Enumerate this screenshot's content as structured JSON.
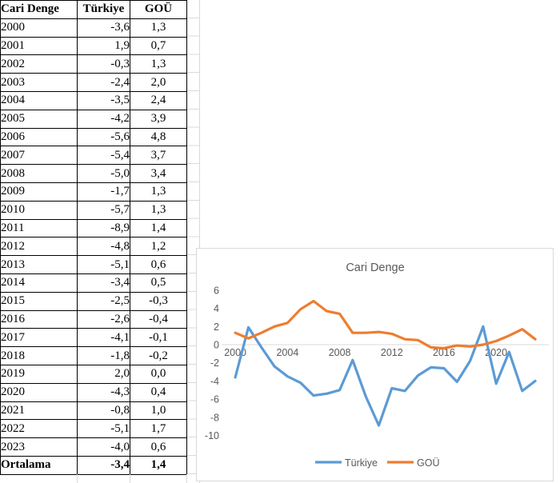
{
  "table": {
    "headers": [
      "Cari Denge",
      "Türkiye",
      "GOÜ"
    ],
    "rows": [
      [
        "2000",
        "-3,6",
        "1,3"
      ],
      [
        "2001",
        "1,9",
        "0,7"
      ],
      [
        "2002",
        "-0,3",
        "1,3"
      ],
      [
        "2003",
        "-2,4",
        "2,0"
      ],
      [
        "2004",
        "-3,5",
        "2,4"
      ],
      [
        "2005",
        "-4,2",
        "3,9"
      ],
      [
        "2006",
        "-5,6",
        "4,8"
      ],
      [
        "2007",
        "-5,4",
        "3,7"
      ],
      [
        "2008",
        "-5,0",
        "3,4"
      ],
      [
        "2009",
        "-1,7",
        "1,3"
      ],
      [
        "2010",
        "-5,7",
        "1,3"
      ],
      [
        "2011",
        "-8,9",
        "1,4"
      ],
      [
        "2012",
        "-4,8",
        "1,2"
      ],
      [
        "2013",
        "-5,1",
        "0,6"
      ],
      [
        "2014",
        "-3,4",
        "0,5"
      ],
      [
        "2015",
        "-2,5",
        "-0,3"
      ],
      [
        "2016",
        "-2,6",
        "-0,4"
      ],
      [
        "2017",
        "-4,1",
        "-0,1"
      ],
      [
        "2018",
        "-1,8",
        "-0,2"
      ],
      [
        "2019",
        "2,0",
        "0,0"
      ],
      [
        "2020",
        "-4,3",
        "0,4"
      ],
      [
        "2021",
        "-0,8",
        "1,0"
      ],
      [
        "2022",
        "-5,1",
        "1,7"
      ],
      [
        "2023",
        "-4,0",
        "0,6"
      ]
    ],
    "footer": [
      "Ortalama",
      "-3,4",
      "1,4"
    ]
  },
  "chart_data": {
    "type": "line",
    "title": "Cari Denge",
    "x": [
      2000,
      2001,
      2002,
      2003,
      2004,
      2005,
      2006,
      2007,
      2008,
      2009,
      2010,
      2011,
      2012,
      2013,
      2014,
      2015,
      2016,
      2017,
      2018,
      2019,
      2020,
      2021,
      2022,
      2023
    ],
    "series": [
      {
        "name": "Türkiye",
        "color": "#5B9BD5",
        "values": [
          -3.6,
          1.9,
          -0.3,
          -2.4,
          -3.5,
          -4.2,
          -5.6,
          -5.4,
          -5.0,
          -1.7,
          -5.7,
          -8.9,
          -4.8,
          -5.1,
          -3.4,
          -2.5,
          -2.6,
          -4.1,
          -1.8,
          2.0,
          -4.3,
          -0.8,
          -5.1,
          -4.0
        ]
      },
      {
        "name": "GOÜ",
        "color": "#ED7D31",
        "values": [
          1.3,
          0.7,
          1.3,
          2.0,
          2.4,
          3.9,
          4.8,
          3.7,
          3.4,
          1.3,
          1.3,
          1.4,
          1.2,
          0.6,
          0.5,
          -0.3,
          -0.4,
          -0.1,
          -0.2,
          0.0,
          0.4,
          1.0,
          1.7,
          0.6
        ]
      }
    ],
    "ylim": [
      -10,
      6
    ],
    "yticks": [
      6,
      4,
      2,
      0,
      -2,
      -4,
      -6,
      -8,
      -10
    ],
    "xticks": [
      2000,
      2004,
      2008,
      2012,
      2016,
      2020
    ],
    "legend_position": "bottom",
    "grid": "zero-axis-line-only",
    "text_color": "#595959",
    "axis_line_color": "#d9d9d9"
  }
}
